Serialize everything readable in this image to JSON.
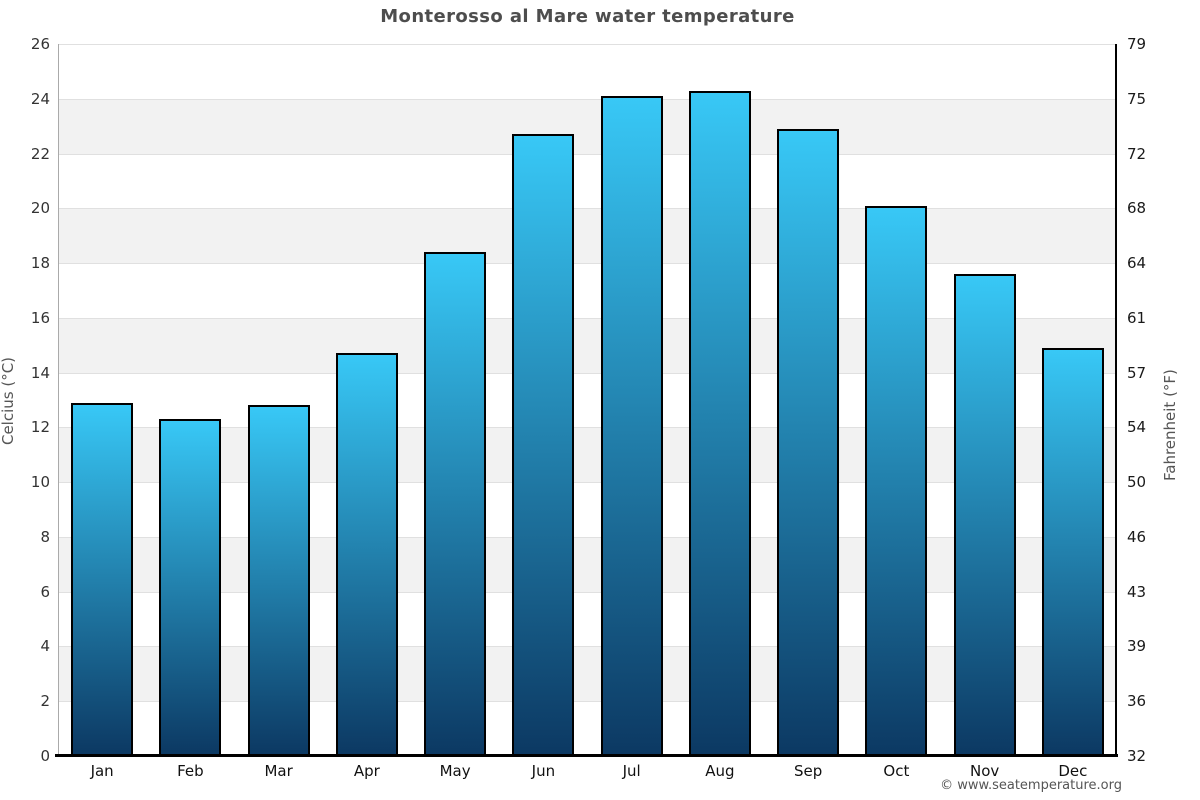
{
  "page": {
    "watermark": "© www.seatemperature.org"
  },
  "chart_data": {
    "type": "bar",
    "title": "Monterosso al Mare water temperature",
    "categories": [
      "Jan",
      "Feb",
      "Mar",
      "Apr",
      "May",
      "Jun",
      "Jul",
      "Aug",
      "Sep",
      "Oct",
      "Nov",
      "Dec"
    ],
    "values": [
      12.9,
      12.3,
      12.8,
      14.7,
      18.4,
      22.7,
      24.1,
      24.3,
      22.9,
      20.1,
      17.6,
      14.9
    ],
    "ylabel_left": "Celcius (°C)",
    "ylabel_right": "Fahrenheit (°F)",
    "ylim": [
      0,
      26
    ],
    "yticks_celsius": [
      0,
      2,
      4,
      6,
      8,
      10,
      12,
      14,
      16,
      18,
      20,
      22,
      24,
      26
    ],
    "yticks_fahrenheit": [
      32,
      36,
      39,
      43,
      46,
      50,
      54,
      57,
      61,
      64,
      68,
      72,
      75,
      79
    ],
    "legend": "none",
    "grid": "alternating horizontal bands every 2°C with light gridlines",
    "colors": {
      "bar_gradient_top": "#38C8F6",
      "bar_gradient_bottom": "#0C3963",
      "bar_border": "#000000",
      "band_light": "#FFFFFF",
      "band_shaded": "#F2F2F2",
      "gridline": "#E0E0E0",
      "title_text": "#4D4D4D",
      "tick_text": "#333333",
      "axis_title_text": "#555555",
      "watermark_text": "#555555"
    }
  }
}
